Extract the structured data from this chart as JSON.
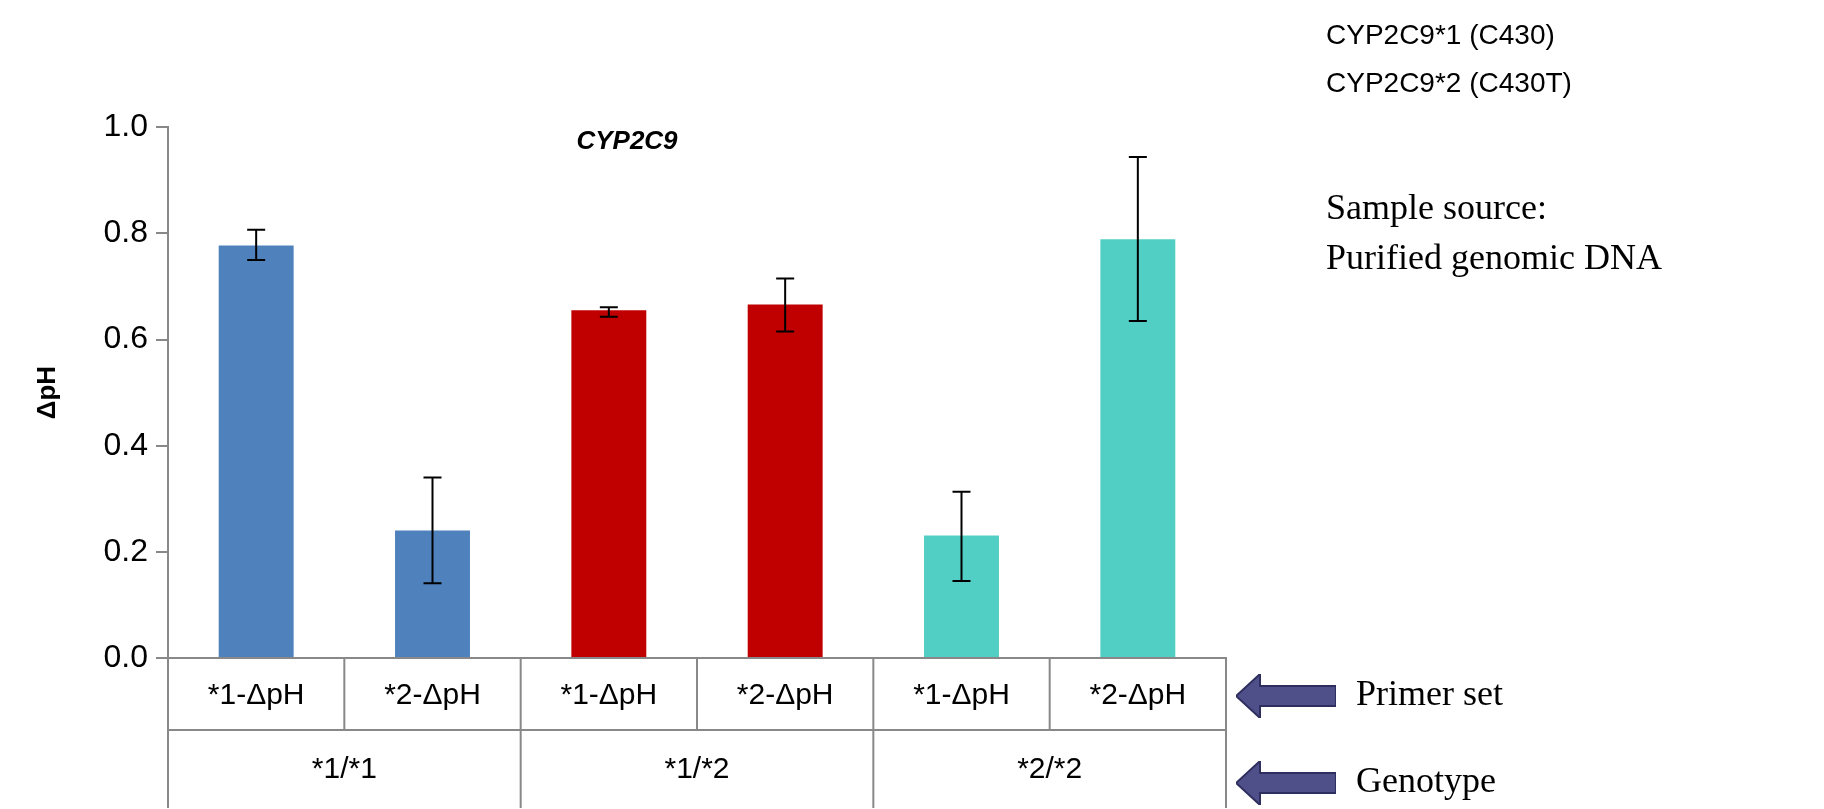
{
  "chart_data": {
    "type": "bar",
    "title": "CYP2C9",
    "ylabel": "ΔpH",
    "categories": [
      "*1-ΔpH",
      "*2-ΔpH",
      "*1-ΔpH",
      "*2-ΔpH",
      "*1-ΔpH",
      "*2-ΔpH"
    ],
    "values": [
      0.777,
      0.24,
      0.655,
      0.666,
      0.231,
      0.789
    ],
    "errors": [
      [
        0.75,
        0.807
      ],
      [
        0.141,
        0.34
      ],
      [
        0.643,
        0.661
      ],
      [
        0.615,
        0.715
      ],
      [
        0.145,
        0.313
      ],
      [
        0.635,
        0.944
      ]
    ],
    "colors": [
      "#4f81bd",
      "#4f81bd",
      "#c00000",
      "#c00000",
      "#52cfc5",
      "#52cfc5"
    ],
    "ylim": [
      0,
      1
    ],
    "yticks": [
      {
        "value": 0,
        "label": "0.0"
      },
      {
        "value": 0.2,
        "label": "0.2"
      },
      {
        "value": 0.4,
        "label": "0.4"
      },
      {
        "value": 0.6,
        "label": "0.6"
      },
      {
        "value": 0.8,
        "label": "0.8"
      },
      {
        "value": 1,
        "label": "1.0"
      }
    ],
    "grid": false,
    "legend": false,
    "annotations": [
      "CYP2C9*1 (C430)",
      "CYP2C9*2 (C430T)",
      "Sample source:",
      "Purified genomic DNA",
      "Primer set",
      "Genotype",
      "*1/*1",
      "*1/*2",
      "*2/*2"
    ]
  }
}
